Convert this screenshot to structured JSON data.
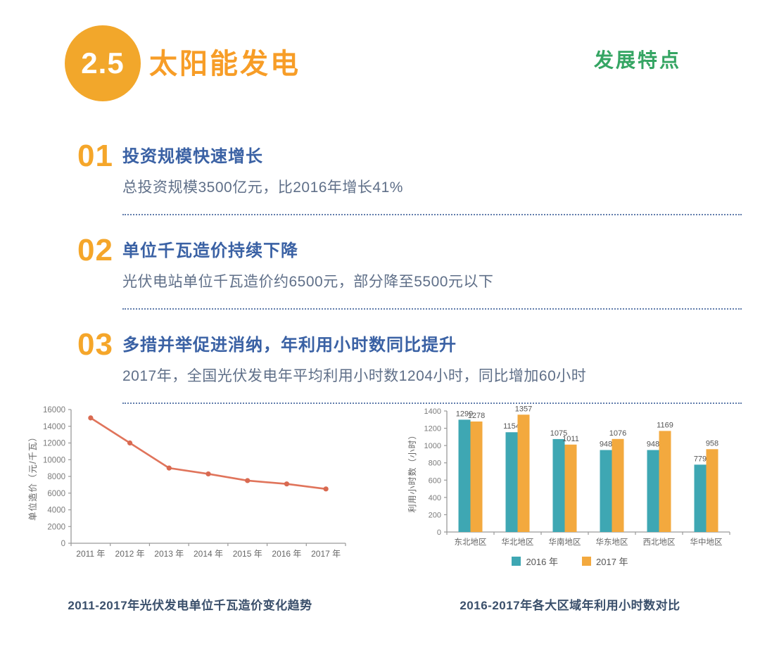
{
  "header": {
    "section_number": "2.5",
    "title": "太阳能发电",
    "right_label": "发展特点"
  },
  "features": [
    {
      "number": "01",
      "heading": "投资规模快速增长",
      "body": "总投资规模3500亿元，比2016年增长41%"
    },
    {
      "number": "02",
      "heading": "单位千瓦造价持续下降",
      "body": "光伏电站单位千瓦造价约6500元，部分降至5500元以下"
    },
    {
      "number": "03",
      "heading": "多措并举促进消纳，年利用小时数同比提升",
      "body": "2017年，全国光伏发电年平均利用小时数1204小时，同比增加60小时"
    }
  ],
  "colors": {
    "badge_yellow": "#F2A72B",
    "title_orange": "#F79D27",
    "green_label": "#35A563",
    "heading_blue": "#3A61A4",
    "body_gray_blue": "#5F6F88",
    "line_salmon": "#E0745B",
    "bar_teal": "#3EA7B3",
    "bar_orange": "#F3A93E"
  },
  "chart_data": [
    {
      "type": "line",
      "title": "2011-2017年光伏发电单位千瓦造价变化趋势",
      "x": [
        "2011 年",
        "2012 年",
        "2013 年",
        "2014 年",
        "2015 年",
        "2016 年",
        "2017 年"
      ],
      "values": [
        15000,
        12000,
        9000,
        8300,
        7500,
        7100,
        6500
      ],
      "ylabel": "单位造价（元/千瓦）",
      "ylim": [
        0,
        16000
      ],
      "ytick_step": 2000,
      "grid": false,
      "line_color": "#E0745B",
      "marker_color": "#D96A51"
    },
    {
      "type": "bar",
      "title": "2016-2017年各大区域年利用小时数对比",
      "categories": [
        "东北地区",
        "华北地区",
        "华南地区",
        "华东地区",
        "西北地区",
        "华中地区"
      ],
      "series": [
        {
          "name": "2016 年",
          "color": "#3EA7B3",
          "values": [
            1299,
            1154,
            1075,
            948,
            948,
            779
          ]
        },
        {
          "name": "2017 年",
          "color": "#F3A93E",
          "values": [
            1278,
            1357,
            1011,
            1076,
            1169,
            958
          ]
        }
      ],
      "ylabel": "利用小时数（小时）",
      "ylim": [
        0,
        1400
      ],
      "ytick_step": 200,
      "grid": false,
      "legend_position": "bottom"
    }
  ]
}
